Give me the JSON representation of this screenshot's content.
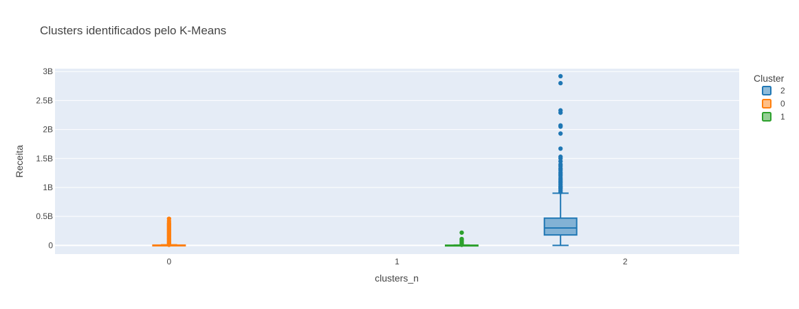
{
  "chart_data": {
    "type": "box",
    "title": "Clusters identificados pelo K-Means",
    "xlabel": "clusters_n",
    "ylabel": "Receita",
    "categories": [
      "0",
      "1",
      "2"
    ],
    "x_tick_labels": [
      "0",
      "1",
      "2"
    ],
    "y_ticks": [
      {
        "value": 0,
        "label": "0"
      },
      {
        "value": 0.5,
        "label": "0.5B"
      },
      {
        "value": 1,
        "label": "1B"
      },
      {
        "value": 1.5,
        "label": "1.5B"
      },
      {
        "value": 2,
        "label": "2B"
      },
      {
        "value": 2.5,
        "label": "2.5B"
      },
      {
        "value": 3,
        "label": "3B"
      }
    ],
    "y_unit_note": "values in billions",
    "ylim": [
      -0.15,
      3.05
    ],
    "grid": true,
    "legend": {
      "title": "Cluster",
      "placement": "top-right"
    },
    "series": [
      {
        "name": "2",
        "category": "2",
        "color": "#1f77b4",
        "fill": "rgba(31,119,180,0.5)",
        "box": {
          "lowerfence": 0.0,
          "q1": 0.18,
          "median": 0.3,
          "q3": 0.47,
          "upperfence": 0.9
        },
        "outliers": [
          0.92,
          0.95,
          0.98,
          1.0,
          1.02,
          1.05,
          1.08,
          1.1,
          1.13,
          1.16,
          1.2,
          1.23,
          1.26,
          1.3,
          1.33,
          1.37,
          1.4,
          1.45,
          1.5,
          1.53,
          1.67,
          1.93,
          2.05,
          2.07,
          2.29,
          2.33,
          2.8,
          2.92
        ]
      },
      {
        "name": "0",
        "category": "0",
        "color": "#ff7f0e",
        "fill": "rgba(255,127,14,0.5)",
        "box": {
          "lowerfence": 0.0,
          "q1": 0.0,
          "median": 0.0,
          "q3": 0.005,
          "upperfence": 0.01
        },
        "outliers": [
          0.01,
          0.03,
          0.05,
          0.07,
          0.09,
          0.11,
          0.13,
          0.15,
          0.17,
          0.19,
          0.21,
          0.23,
          0.25,
          0.27,
          0.29,
          0.31,
          0.33,
          0.35,
          0.37,
          0.39,
          0.42,
          0.46
        ]
      },
      {
        "name": "1",
        "category": "1",
        "color": "#2ca02c",
        "fill": "rgba(44,160,44,0.5)",
        "box": {
          "lowerfence": 0.0,
          "q1": 0.0,
          "median": 0.0,
          "q3": 0.003,
          "upperfence": 0.006
        },
        "outliers": [
          0.01,
          0.03,
          0.05,
          0.07,
          0.09,
          0.11,
          0.22
        ]
      }
    ]
  }
}
